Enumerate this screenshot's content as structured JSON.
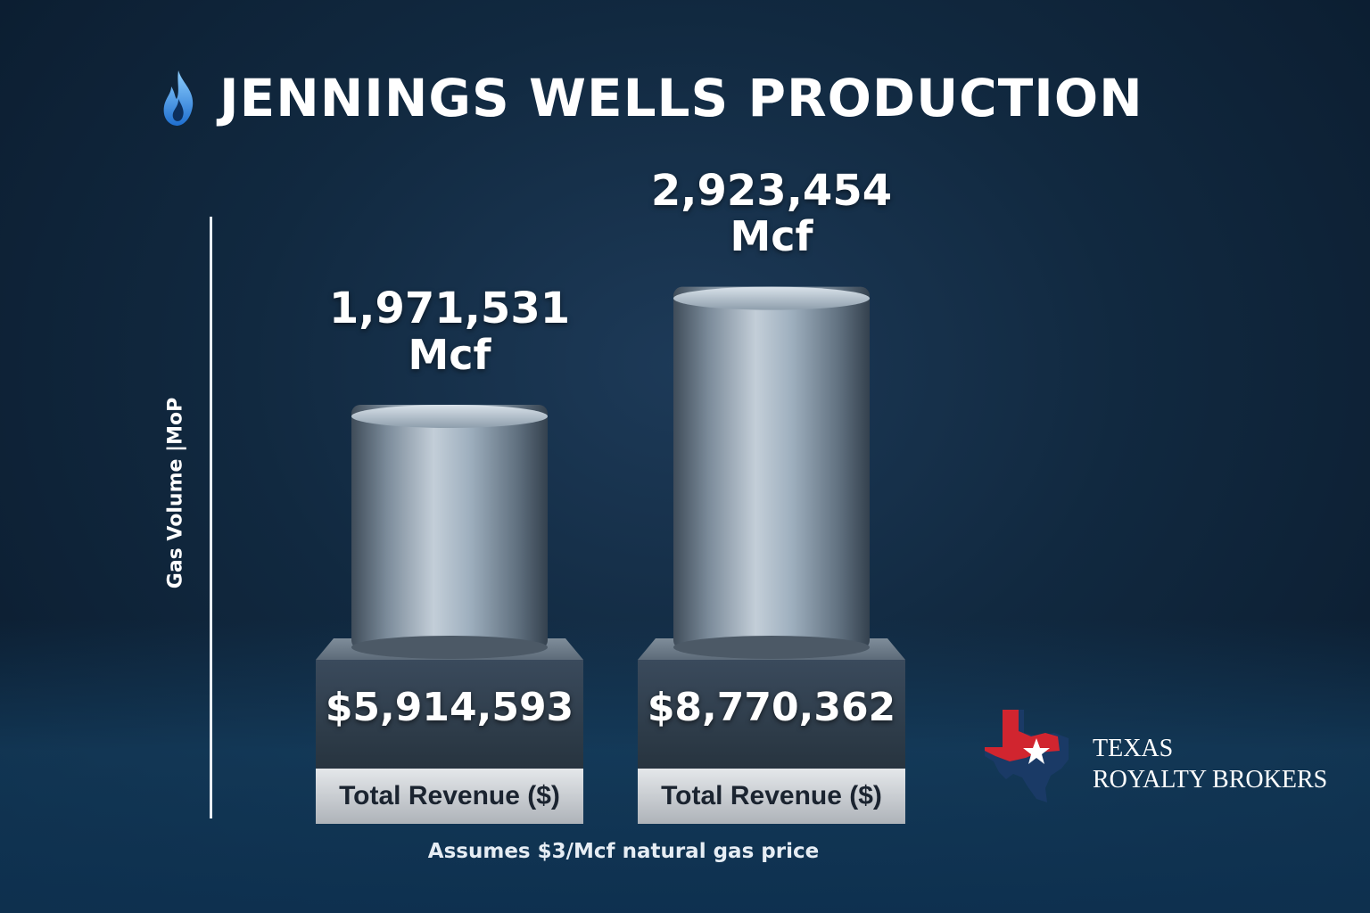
{
  "title": "JENNINGS WELLS PRODUCTION",
  "icon": "flame-icon",
  "footnote": "Assumes $3/Mcf natural gas price",
  "logo": {
    "line1": "TEXAS",
    "line2": "ROYALTY BROKERS",
    "icon": "texas-star-icon"
  },
  "colors": {
    "background": "#112940",
    "cylinder": "#8a9bab",
    "pedestal": "#2c3b4c",
    "caption_band": "#c9cdd2",
    "flame": "#3a8ee6",
    "texas_red": "#d1252f",
    "texas_blue": "#1a3a66"
  },
  "chart_data": {
    "type": "bar",
    "ylabel": "Gas Volume |MoP",
    "series": [
      {
        "values": [
          1971531,
          2923454
        ],
        "unit": "Mcf",
        "value_labels": [
          "1,971,531",
          "2,923,454"
        ],
        "unit_labels": [
          "Mcf",
          "Mcf"
        ]
      }
    ],
    "revenue": {
      "values": [
        5914593,
        8770362
      ],
      "labels": [
        "$5,914,593",
        "$8,770,362"
      ],
      "caption": "Total Revenue ($)"
    }
  }
}
